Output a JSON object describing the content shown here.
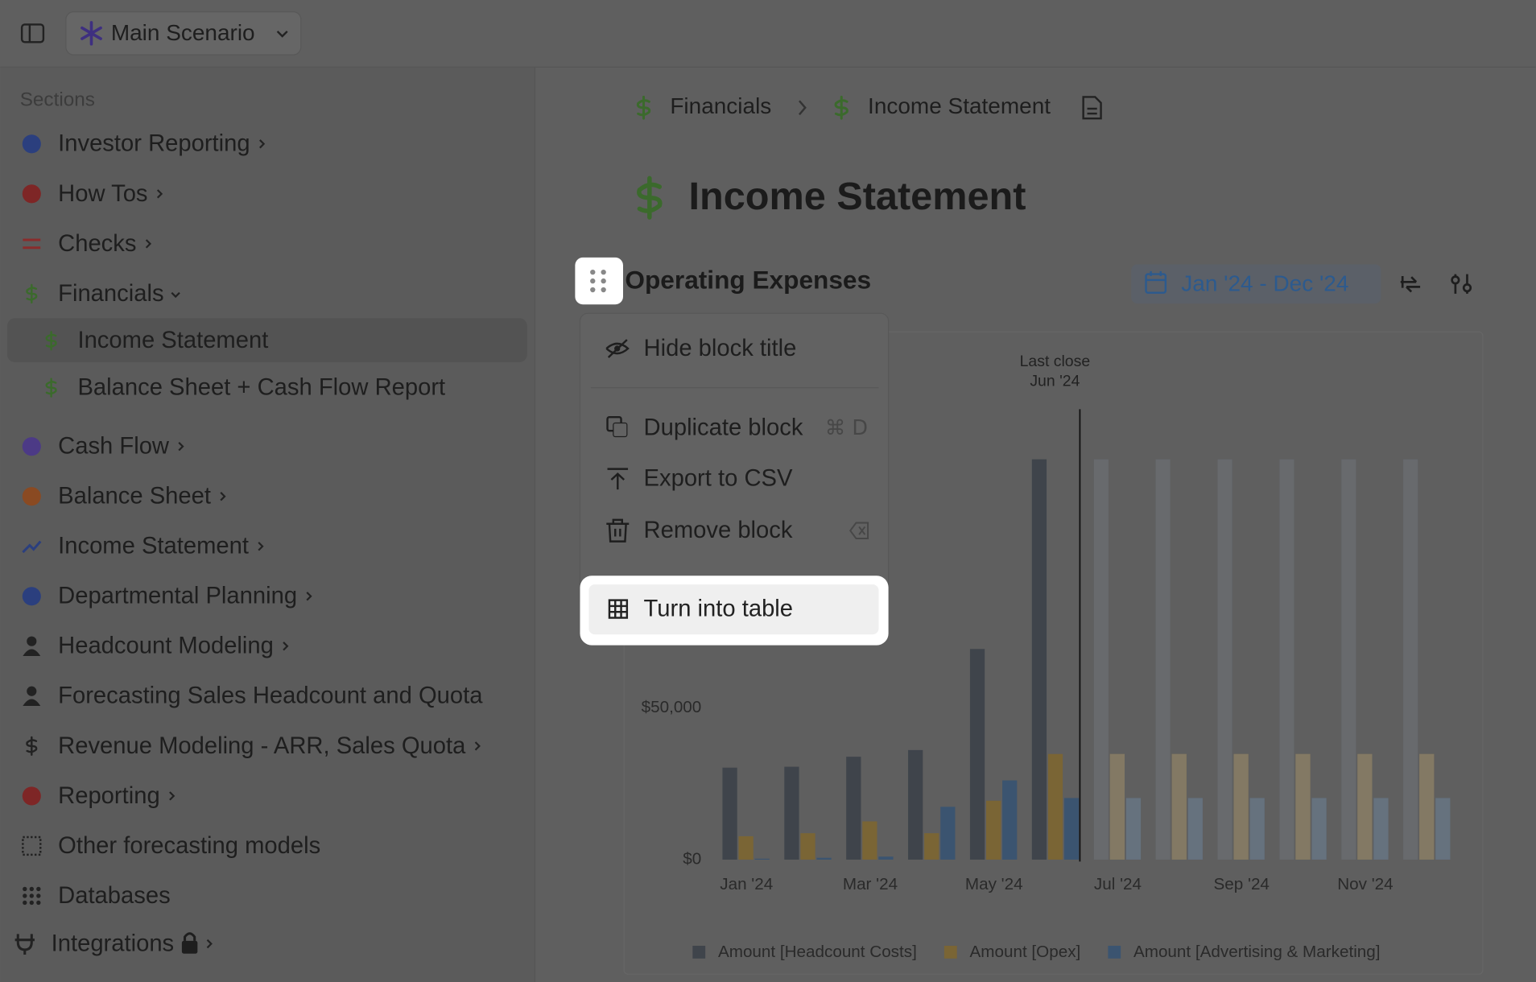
{
  "top_bar": {
    "scenario": "Main Scenario"
  },
  "sidebar": {
    "heading": "Sections",
    "items": [
      {
        "label": "Investor Reporting",
        "level": 0,
        "chevron": "right"
      },
      {
        "label": "How Tos",
        "level": 0,
        "chevron": "right"
      },
      {
        "label": "Checks",
        "level": 0,
        "chevron": "right"
      },
      {
        "label": "Financials",
        "level": 0,
        "chevron": "down"
      },
      {
        "label": "Income Statement",
        "level": 1,
        "selected": true
      },
      {
        "label": "Balance Sheet + Cash Flow Report",
        "level": 1
      },
      {
        "label": "Cash Flow",
        "level": 0,
        "chevron": "right"
      },
      {
        "label": "Balance Sheet",
        "level": 0,
        "chevron": "right"
      },
      {
        "label": "Income Statement",
        "level": 0,
        "chevron": "right"
      },
      {
        "label": "Departmental Planning",
        "level": 0,
        "chevron": "right"
      },
      {
        "label": "Headcount Modeling",
        "level": 0,
        "chevron": "right"
      },
      {
        "label": "Forecasting Sales Headcount and Quota",
        "level": 0
      },
      {
        "label": "Revenue Modeling - ARR, Sales Quota",
        "level": 0,
        "chevron": "right"
      },
      {
        "label": "Reporting",
        "level": 0,
        "chevron": "right"
      },
      {
        "label": "Other forecasting models",
        "level": 0
      },
      {
        "label": "Databases",
        "level": 0
      },
      {
        "label": "Integrations",
        "level": 0,
        "chevron": "right",
        "locked": true
      }
    ]
  },
  "breadcrumb": [
    "Financials",
    "Income Statement"
  ],
  "page_title": "Income Statement",
  "block": {
    "title": "Operating Expenses",
    "date_range": "Jan '24 - Dec '24"
  },
  "menu": {
    "items": [
      {
        "label": "Hide block title"
      },
      {
        "label": "Duplicate block",
        "shortcut": "⌘ D"
      },
      {
        "label": "Export to CSV"
      },
      {
        "label": "Remove block"
      },
      {
        "label": "Turn into table",
        "highlighted": true
      }
    ]
  },
  "chart_data": {
    "type": "bar",
    "categories": [
      "Jan '24",
      null,
      "Mar '24",
      null,
      "May '24",
      null,
      "Jul '24",
      null,
      "Sep '24",
      null,
      "Nov '24",
      null
    ],
    "series": [
      {
        "name": "Amount [Headcount Costs]",
        "color": "#3f444b",
        "values": [
          30300,
          30600,
          33900,
          36100,
          69400,
          131900,
          131900,
          131900,
          131900,
          131900,
          131900,
          131900
        ]
      },
      {
        "name": "Amount [Opex]",
        "color": "#7a6535",
        "values": [
          7700,
          8700,
          12600,
          8700,
          19400,
          34800,
          34800,
          34800,
          34800,
          34800,
          34800,
          34800
        ]
      },
      {
        "name": "Amount [Advertising & Marketing]",
        "color": "#3b5470",
        "values": [
          300,
          600,
          1000,
          17400,
          26100,
          20300,
          20300,
          20300,
          20300,
          20300,
          20300,
          20300
        ]
      }
    ],
    "ylim": [
      0,
      150000
    ],
    "yticks": [
      {
        "value": 0,
        "label": "$0"
      },
      {
        "value": 50000,
        "label": "$50,000"
      }
    ],
    "grid": false,
    "annotation": [
      "Last close",
      "Jun '24"
    ],
    "last_close_index": 5,
    "legend": "bottom"
  }
}
